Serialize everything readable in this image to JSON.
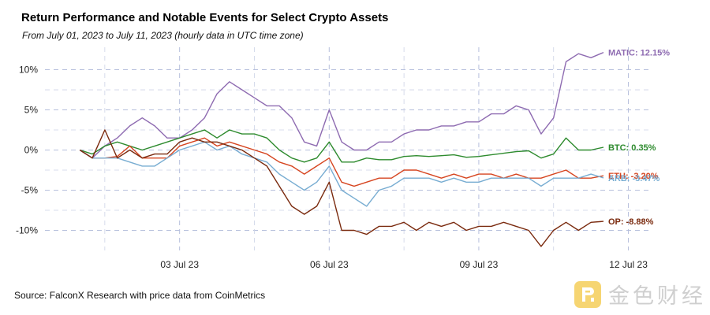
{
  "title": "Return Performance and Notable Events for Select Crypto Assets",
  "subtitle": "From July 01, 2023 to July 11, 2023 (hourly data in UTC time zone)",
  "source": "Source: FalconX Research with price data from CoinMetrics",
  "watermark": {
    "text": "金色财经"
  },
  "chart_data": {
    "type": "line",
    "title": "Return Performance and Notable Events for Select Crypto Assets",
    "xlabel": "",
    "ylabel": "",
    "x": [
      0,
      0.25,
      0.5,
      0.75,
      1,
      1.25,
      1.5,
      1.75,
      2,
      2.25,
      2.5,
      2.75,
      3,
      3.25,
      3.5,
      3.75,
      4,
      4.25,
      4.5,
      4.75,
      5,
      5.25,
      5.5,
      5.75,
      6,
      6.25,
      6.5,
      6.75,
      7,
      7.25,
      7.5,
      7.75,
      8,
      8.25,
      8.5,
      8.75,
      9,
      9.25,
      9.5,
      9.75,
      10,
      10.25,
      10.5
    ],
    "x_ticks": [
      {
        "value": 2,
        "label": "03 Jul 23"
      },
      {
        "value": 5,
        "label": "06 Jul 23"
      },
      {
        "value": 8,
        "label": "09 Jul 23"
      },
      {
        "value": 11,
        "label": "12 Jul 23"
      }
    ],
    "xlim": [
      -0.7,
      11.45
    ],
    "ylim": [
      -12.5,
      12.8
    ],
    "y_ticks": [
      {
        "value": 10,
        "label": "10%"
      },
      {
        "value": 5,
        "label": "5%"
      },
      {
        "value": 0,
        "label": "0%"
      },
      {
        "value": -5,
        "label": "-5%"
      },
      {
        "value": -10,
        "label": "-10%"
      }
    ],
    "grid": true,
    "series": [
      {
        "name": "MATIC",
        "label": "MATIC: 12.15%",
        "color": "#8E6BB1",
        "values": [
          0,
          -1.0,
          0.5,
          1.5,
          3.0,
          4.0,
          3.0,
          1.5,
          1.5,
          2.5,
          4.0,
          7.0,
          8.5,
          7.5,
          6.5,
          5.5,
          5.5,
          4.0,
          1.0,
          0.5,
          5.0,
          1.0,
          0.0,
          0.0,
          1.0,
          1.0,
          2.0,
          2.5,
          2.5,
          3.0,
          3.0,
          3.5,
          3.5,
          4.5,
          4.5,
          5.5,
          5.0,
          2.0,
          4.0,
          11.0,
          12.0,
          11.5,
          12.15
        ]
      },
      {
        "name": "BTC",
        "label": "BTC: 0.35%",
        "color": "#2E8B2E",
        "values": [
          0,
          -0.5,
          0.5,
          1.0,
          0.5,
          0.0,
          0.5,
          1.0,
          1.5,
          2.0,
          2.5,
          1.5,
          2.5,
          2.0,
          2.0,
          1.5,
          0.0,
          -1.0,
          -1.5,
          -1.0,
          1.0,
          -1.5,
          -1.5,
          -1.0,
          -1.2,
          -1.2,
          -0.8,
          -0.7,
          -0.8,
          -0.7,
          -0.6,
          -0.9,
          -0.8,
          -0.6,
          -0.4,
          -0.2,
          -0.1,
          -1.0,
          -0.5,
          1.5,
          0.0,
          0.0,
          0.35
        ]
      },
      {
        "name": "ETH",
        "label": "ETH: -3.20%",
        "color": "#D64520",
        "values": [
          0,
          -1.0,
          -1.0,
          -0.8,
          0.5,
          -1.0,
          -1.0,
          -1.0,
          0.5,
          1.0,
          1.5,
          0.5,
          1.0,
          0.5,
          0.0,
          -0.5,
          -1.5,
          -2.0,
          -3.0,
          -2.0,
          -1.0,
          -4.0,
          -4.5,
          -4.0,
          -3.5,
          -3.5,
          -2.5,
          -2.5,
          -3.0,
          -3.5,
          -3.0,
          -3.5,
          -3.0,
          -3.0,
          -3.5,
          -3.0,
          -3.5,
          -3.5,
          -3.0,
          -2.5,
          -3.5,
          -3.5,
          -3.2
        ]
      },
      {
        "name": "ARB",
        "label": "ARB: -3.47%",
        "color": "#78ADD2",
        "values": [
          0,
          -1.0,
          -1.0,
          -1.0,
          -1.5,
          -2.0,
          -2.0,
          -1.0,
          0.0,
          0.5,
          1.0,
          0.0,
          0.5,
          -0.5,
          -1.0,
          -1.5,
          -3.0,
          -4.0,
          -5.0,
          -4.0,
          -2.0,
          -5.0,
          -6.0,
          -7.0,
          -5.0,
          -4.5,
          -3.5,
          -3.5,
          -3.5,
          -4.0,
          -3.5,
          -4.0,
          -4.0,
          -3.5,
          -3.5,
          -3.5,
          -3.5,
          -4.5,
          -3.5,
          -3.5,
          -3.5,
          -3.0,
          -3.47
        ]
      },
      {
        "name": "OP",
        "label": "OP: -8.88%",
        "color": "#7A2A0E",
        "values": [
          0,
          -1.0,
          2.5,
          -1.0,
          0.0,
          -1.0,
          -0.5,
          -0.5,
          1.0,
          1.5,
          1.0,
          1.0,
          0.5,
          0.0,
          -1.0,
          -2.0,
          -4.5,
          -7.0,
          -8.0,
          -7.0,
          -4.0,
          -10.0,
          -10.0,
          -10.5,
          -9.5,
          -9.5,
          -9.0,
          -10.0,
          -9.0,
          -9.5,
          -9.0,
          -10.0,
          -9.5,
          -9.5,
          -9.0,
          -9.5,
          -10.0,
          -12.0,
          -10.0,
          -9.0,
          -10.0,
          -9.0,
          -8.88
        ]
      }
    ]
  }
}
